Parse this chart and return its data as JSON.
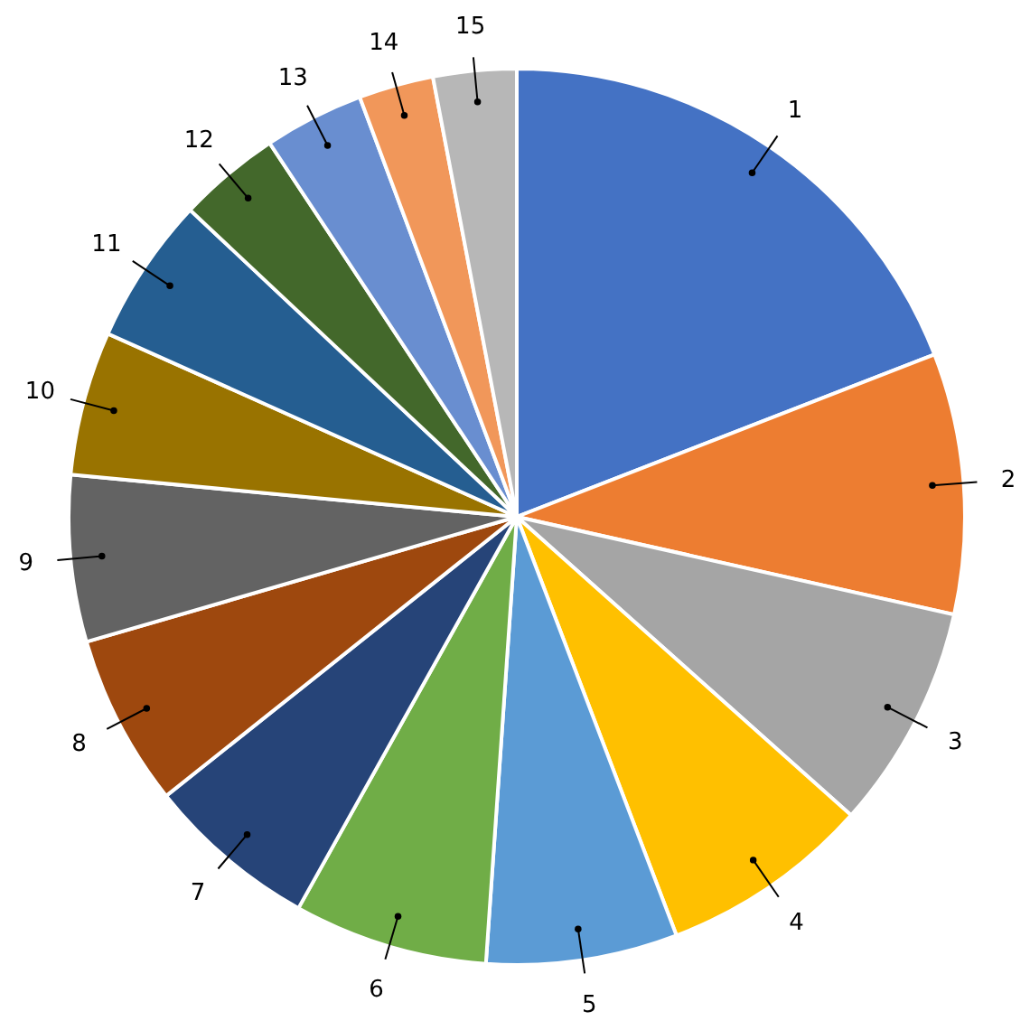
{
  "chart_data": {
    "type": "pie",
    "categories": [
      "1",
      "2",
      "3",
      "4",
      "5",
      "6",
      "7",
      "8",
      "9",
      "10",
      "11",
      "12",
      "13",
      "14",
      "15"
    ],
    "values": [
      19.1,
      9.4,
      8.1,
      7.6,
      6.9,
      7.0,
      6.2,
      6.2,
      6.0,
      5.2,
      5.3,
      3.7,
      3.6,
      2.7,
      3.0
    ],
    "colors": [
      "#4472c4",
      "#ed7d31",
      "#a5a5a5",
      "#ffc000",
      "#5b9bd5",
      "#70ad47",
      "#264478",
      "#9e480e",
      "#636363",
      "#997300",
      "#255e91",
      "#43682b",
      "#698ed0",
      "#f1975a",
      "#b7b7b7"
    ],
    "legend": false
  }
}
